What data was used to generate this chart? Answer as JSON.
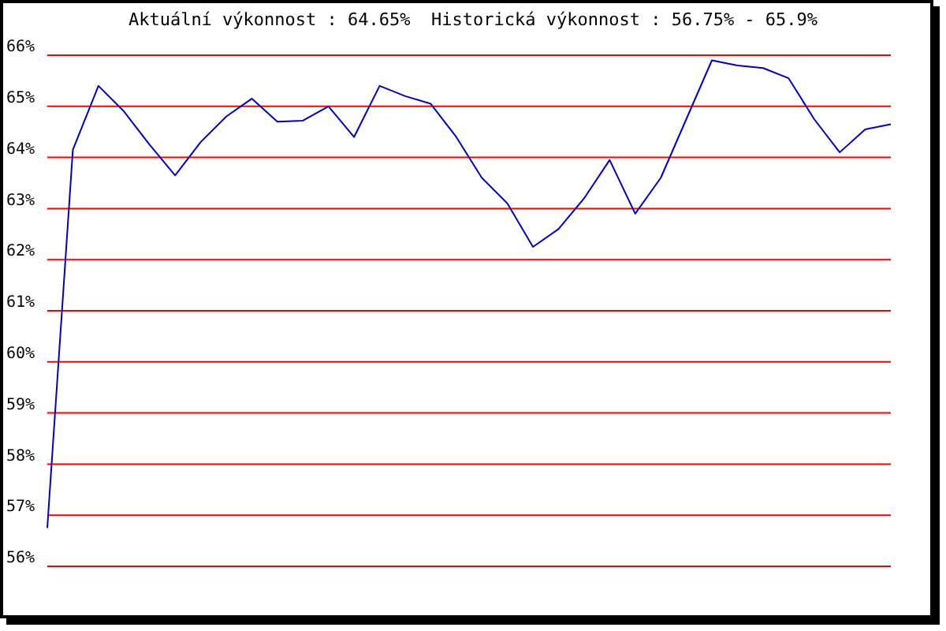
{
  "chart_data": {
    "type": "line",
    "title": "Aktuální výkonnost : 64.65%  Historická výkonnost : 56.75% - 65.9%",
    "categories": [
      null,
      null,
      null,
      null,
      null,
      null,
      null,
      null,
      null,
      null,
      null,
      null,
      null,
      null,
      null,
      null,
      null,
      null,
      null,
      null,
      null,
      null,
      null,
      null,
      null,
      null,
      null,
      null,
      null,
      null,
      null,
      null,
      null,
      null
    ],
    "series": [
      {
        "color": "#0000cc",
        "values": [
          56.75,
          64.15,
          65.4,
          64.9,
          64.25,
          63.65,
          64.3,
          64.8,
          65.15,
          64.7,
          64.72,
          65.0,
          64.4,
          65.4,
          65.2,
          65.05,
          64.4,
          63.6,
          63.1,
          62.25,
          62.6,
          63.2,
          63.95,
          62.9,
          63.6,
          64.75,
          65.9,
          65.8,
          65.75,
          65.55,
          64.75,
          64.1,
          64.55,
          64.65
        ]
      }
    ],
    "ylim": [
      56,
      66
    ],
    "yticks": [
      {
        "value": 56,
        "label": "56%"
      },
      {
        "value": 57,
        "label": "57%"
      },
      {
        "value": 58,
        "label": "58%"
      },
      {
        "value": 59,
        "label": "59%"
      },
      {
        "value": 60,
        "label": "60%"
      },
      {
        "value": 61,
        "label": "61%"
      },
      {
        "value": 62,
        "label": "62%"
      },
      {
        "value": 63,
        "label": "63%"
      },
      {
        "value": 64,
        "label": "64%"
      },
      {
        "value": 65,
        "label": "65%"
      },
      {
        "value": 66,
        "label": "66%"
      }
    ],
    "grid": "y",
    "tick_labels": "y",
    "marker": "none",
    "line_style": "solid"
  }
}
